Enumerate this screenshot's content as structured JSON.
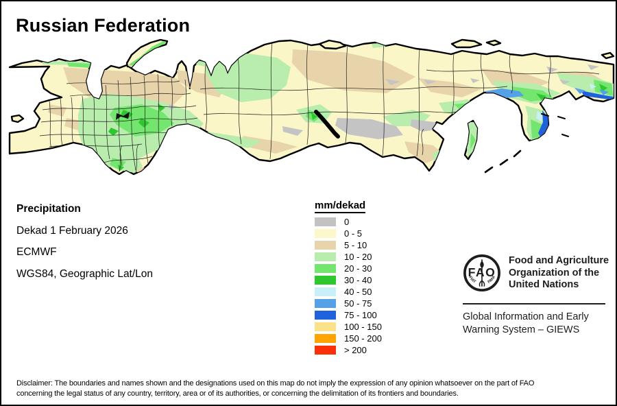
{
  "title": "Russian Federation",
  "info": {
    "product": "Precipitation",
    "dekad": "Dekad 1 February 2026",
    "source": "ECMWF",
    "projection": "WGS84, Geographic Lat/Lon"
  },
  "legend": {
    "title": "mm/dekad",
    "items": [
      {
        "label": "0",
        "color": "#C2C2C2"
      },
      {
        "label": "0 - 5",
        "color": "#FCF8CC"
      },
      {
        "label": "5 - 10",
        "color": "#E8D4AA"
      },
      {
        "label": "10 - 20",
        "color": "#B9EDAE"
      },
      {
        "label": "20 - 30",
        "color": "#74E66F"
      },
      {
        "label": "30 - 40",
        "color": "#2EC82E"
      },
      {
        "label": "40 - 50",
        "color": "#C9F0F8"
      },
      {
        "label": "50 - 75",
        "color": "#55A1E8"
      },
      {
        "label": "75 - 100",
        "color": "#2061DC"
      },
      {
        "label": "100 - 150",
        "color": "#FBE189"
      },
      {
        "label": "150 - 200",
        "color": "#FFA400"
      },
      {
        "label": "> 200",
        "color": "#F93008"
      }
    ]
  },
  "map_palette": {
    "sea": "#FFFFFF",
    "base_land": "#FBF6C8",
    "coastline": "#000000",
    "admin_boundary": "#1a1a1a"
  },
  "org": {
    "fao_logo_letters": "FAO",
    "fao_motto_left": "FIAT",
    "fao_motto_right": "PANIS",
    "name_lines": [
      "Food and Agriculture",
      "Organization of the",
      "United Nations"
    ],
    "giews_lines": [
      "Global Information and Early",
      "Warning System – GIEWS"
    ]
  },
  "footer": {
    "disclaimer_line1": "Disclaimer: The boundaries and names shown and the designations used on this map do not imply the expression of any opinion whatsoever on the part of FAO",
    "disclaimer_line2": "concerning the legal status of any country, territory, area or of its authorities, or concerning the delimitation of its frontiers and boundaries."
  }
}
